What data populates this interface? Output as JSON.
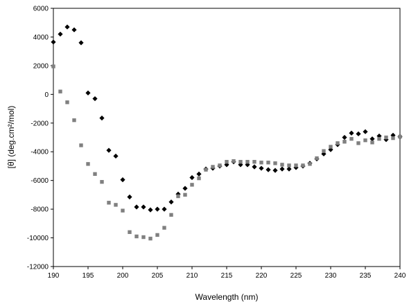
{
  "chart_data": {
    "type": "scatter",
    "title": "",
    "xlabel": "Wavelength (nm)",
    "ylabel": "[θ] (deg.cm²/mol)",
    "xlim": [
      190,
      240
    ],
    "ylim": [
      -12000,
      6000
    ],
    "xticks": [
      "190",
      "195",
      "200",
      "205",
      "210",
      "215",
      "220",
      "225",
      "230",
      "235",
      "240"
    ],
    "yticks": [
      "6000",
      "4000",
      "2000",
      "0",
      "-2000",
      "-4000",
      "-6000",
      "-8000",
      "-10000",
      "-12000"
    ],
    "grid": false,
    "legend": "none",
    "series": [
      {
        "marker": "diamond",
        "color": "#000000",
        "points": [
          [
            190,
            3650
          ],
          [
            191,
            4200
          ],
          [
            192,
            4700
          ],
          [
            193,
            4500
          ],
          [
            194,
            3600
          ],
          [
            195,
            100
          ],
          [
            196,
            -300
          ],
          [
            197,
            -1650
          ],
          [
            198,
            -3900
          ],
          [
            199,
            -4300
          ],
          [
            200,
            -5950
          ],
          [
            201,
            -7150
          ],
          [
            202,
            -7850
          ],
          [
            203,
            -7850
          ],
          [
            204,
            -8050
          ],
          [
            205,
            -8000
          ],
          [
            206,
            -8000
          ],
          [
            207,
            -7500
          ],
          [
            208,
            -6950
          ],
          [
            209,
            -6550
          ],
          [
            210,
            -5800
          ],
          [
            211,
            -5550
          ],
          [
            212,
            -5200
          ],
          [
            213,
            -5150
          ],
          [
            214,
            -5000
          ],
          [
            215,
            -4900
          ],
          [
            216,
            -4700
          ],
          [
            217,
            -4900
          ],
          [
            218,
            -4900
          ],
          [
            219,
            -5050
          ],
          [
            220,
            -5150
          ],
          [
            221,
            -5250
          ],
          [
            222,
            -5300
          ],
          [
            223,
            -5200
          ],
          [
            224,
            -5200
          ],
          [
            225,
            -5100
          ],
          [
            226,
            -5000
          ],
          [
            227,
            -4800
          ],
          [
            228,
            -4500
          ],
          [
            229,
            -4150
          ],
          [
            230,
            -3850
          ],
          [
            231,
            -3500
          ],
          [
            232,
            -3000
          ],
          [
            233,
            -2700
          ],
          [
            234,
            -2750
          ],
          [
            235,
            -2600
          ],
          [
            236,
            -3100
          ],
          [
            237,
            -2900
          ],
          [
            238,
            -3150
          ],
          [
            239,
            -2850
          ],
          [
            240,
            -2950
          ]
        ]
      },
      {
        "marker": "square",
        "color": "#808080",
        "points": [
          [
            190,
            1950
          ],
          [
            191,
            200
          ],
          [
            192,
            -550
          ],
          [
            193,
            -1800
          ],
          [
            194,
            -3550
          ],
          [
            195,
            -4850
          ],
          [
            196,
            -5550
          ],
          [
            197,
            -6100
          ],
          [
            198,
            -7550
          ],
          [
            199,
            -7700
          ],
          [
            200,
            -8100
          ],
          [
            201,
            -9600
          ],
          [
            202,
            -9900
          ],
          [
            203,
            -9950
          ],
          [
            204,
            -10050
          ],
          [
            205,
            -9800
          ],
          [
            206,
            -9300
          ],
          [
            207,
            -8400
          ],
          [
            208,
            -7100
          ],
          [
            209,
            -7000
          ],
          [
            210,
            -6300
          ],
          [
            211,
            -5850
          ],
          [
            212,
            -5250
          ],
          [
            213,
            -5050
          ],
          [
            214,
            -4950
          ],
          [
            215,
            -4700
          ],
          [
            216,
            -4650
          ],
          [
            217,
            -4700
          ],
          [
            218,
            -4700
          ],
          [
            219,
            -4700
          ],
          [
            220,
            -4750
          ],
          [
            221,
            -4750
          ],
          [
            222,
            -4800
          ],
          [
            223,
            -4900
          ],
          [
            224,
            -4950
          ],
          [
            225,
            -4950
          ],
          [
            226,
            -4950
          ],
          [
            227,
            -4850
          ],
          [
            228,
            -4450
          ],
          [
            229,
            -3950
          ],
          [
            230,
            -3650
          ],
          [
            231,
            -3400
          ],
          [
            232,
            -3300
          ],
          [
            233,
            -3100
          ],
          [
            234,
            -3400
          ],
          [
            235,
            -3200
          ],
          [
            236,
            -3350
          ],
          [
            237,
            -3100
          ],
          [
            238,
            -3000
          ],
          [
            239,
            -3050
          ],
          [
            240,
            -2950
          ]
        ]
      }
    ]
  }
}
